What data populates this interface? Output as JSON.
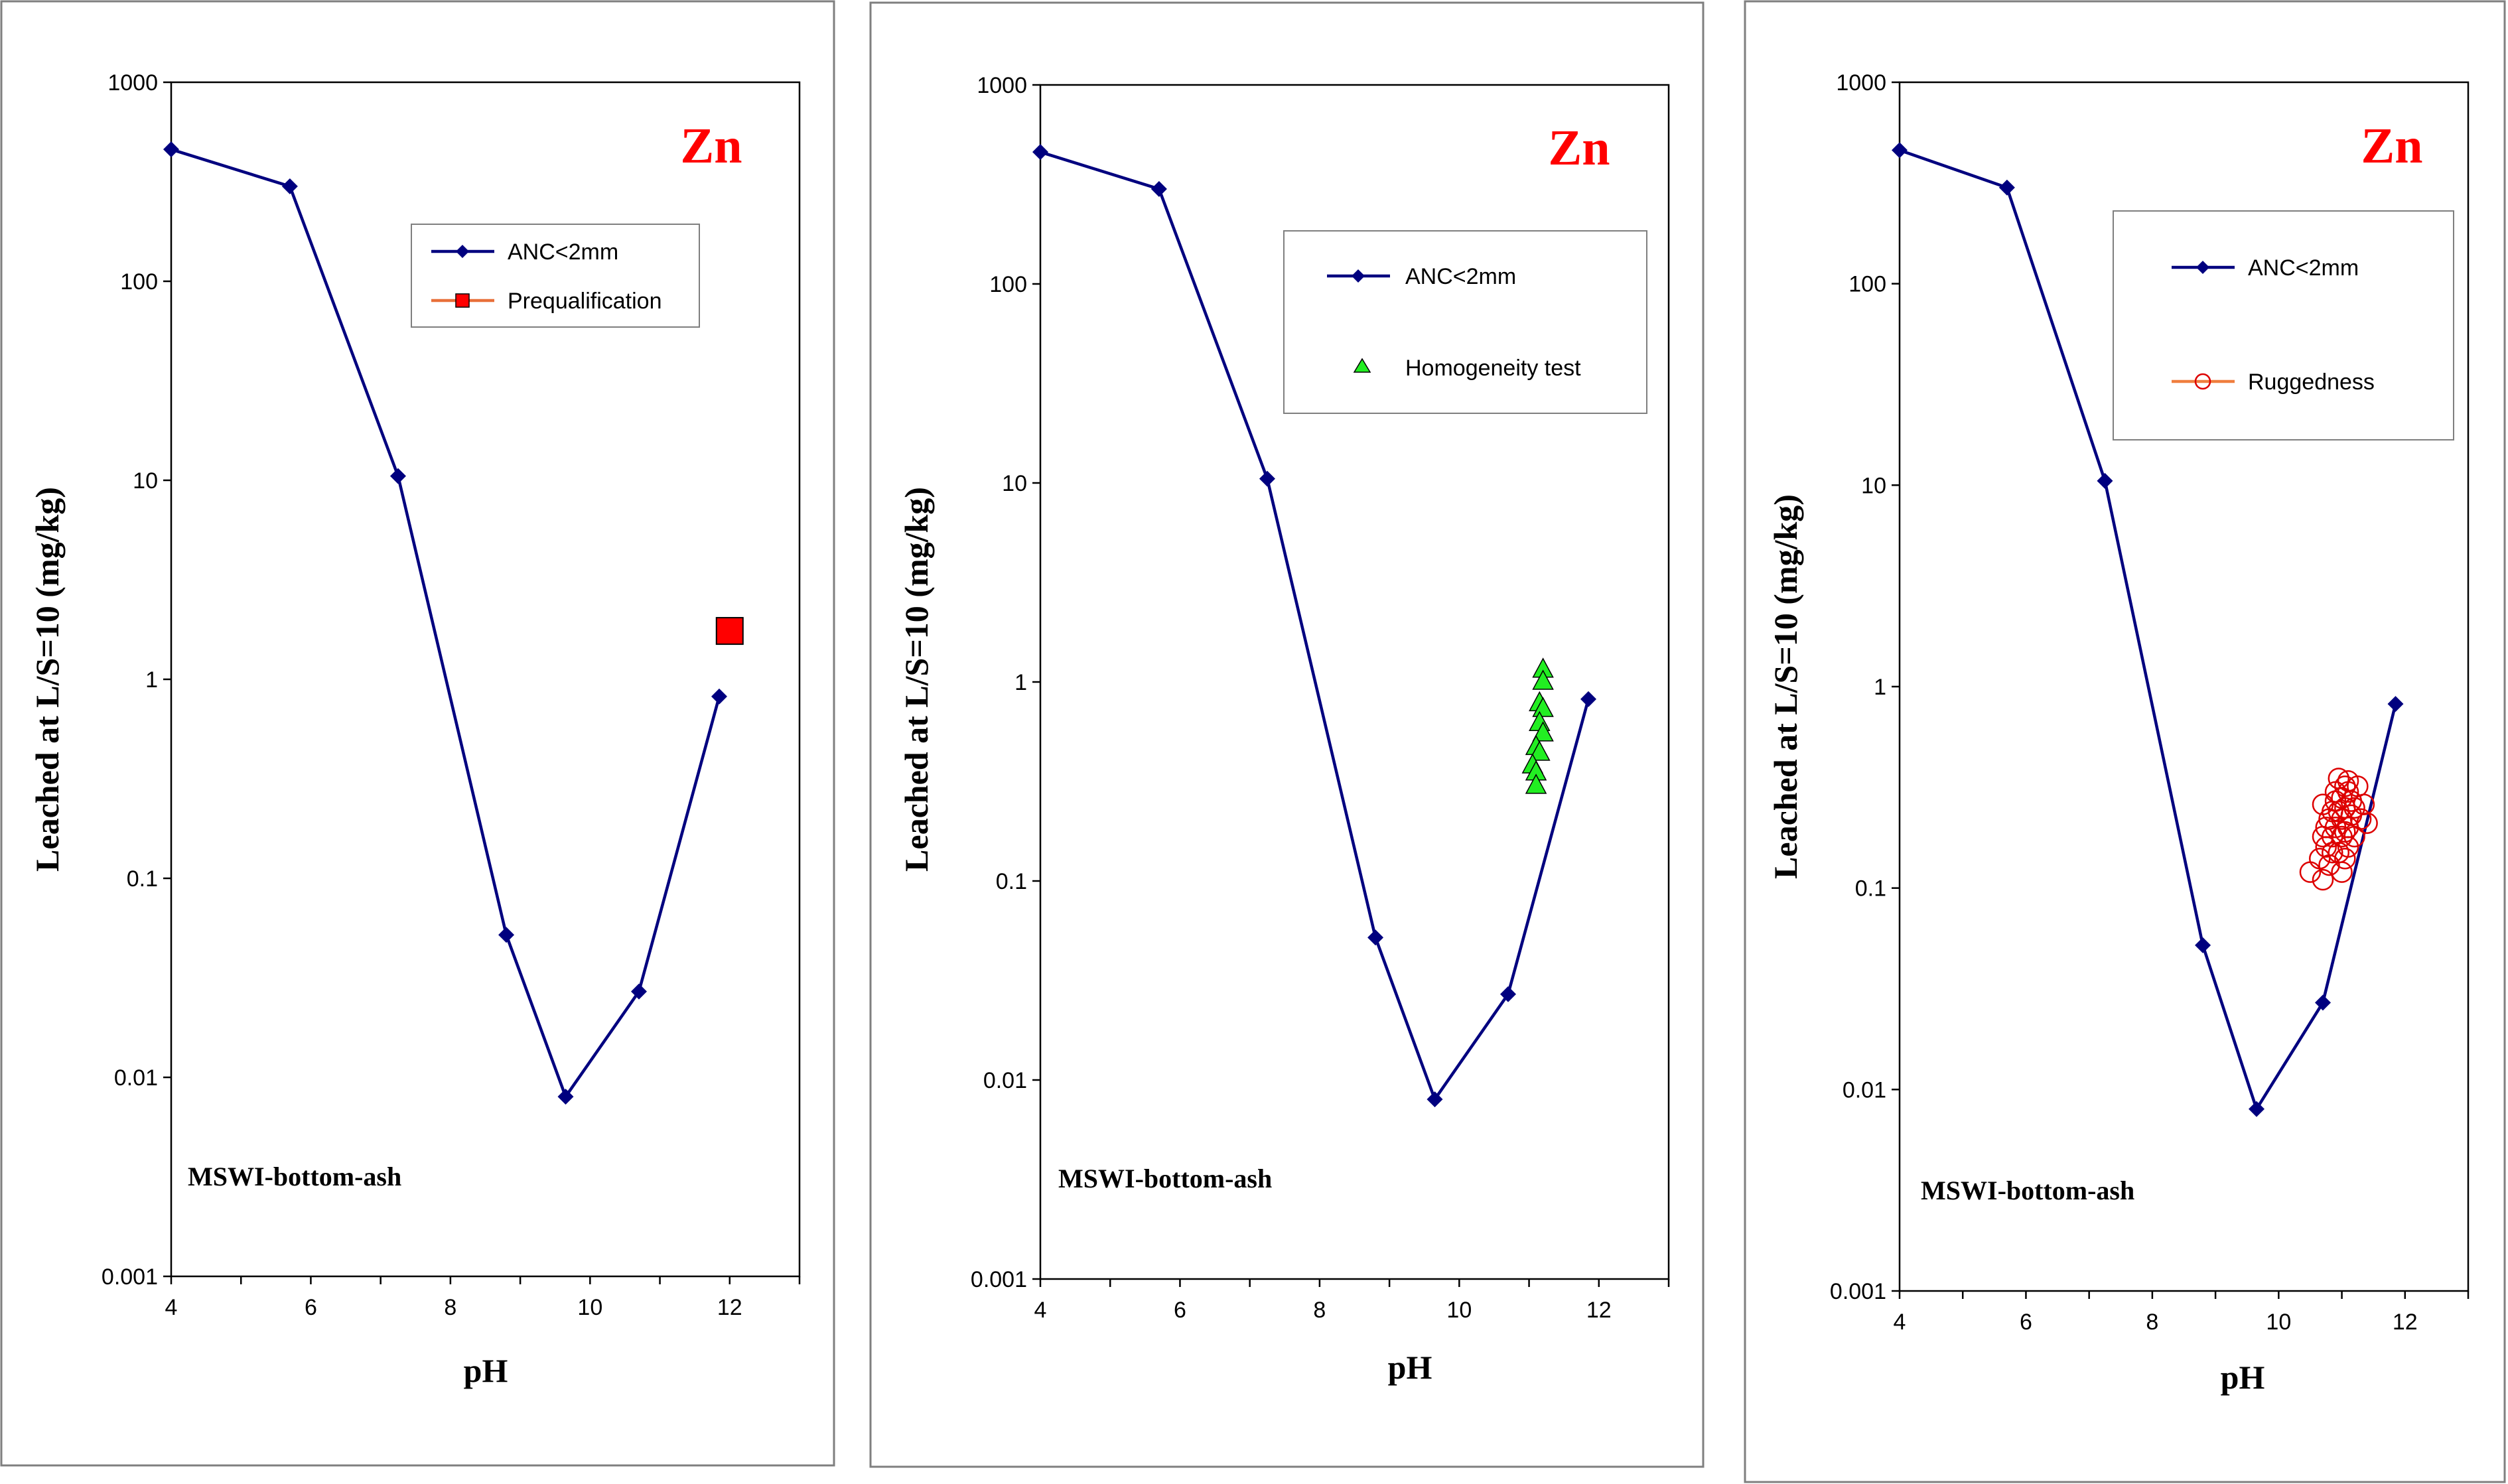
{
  "colors": {
    "anc_line": "#00007f",
    "prequal_fill": "#ff0000",
    "prequal_line": "#e8703a",
    "homogeneity_fill": "#22ee22",
    "ruggedness_stroke": "#dd0000",
    "ruggedness_line": "#f07e3e",
    "element_label": "#ff0000"
  },
  "chart_data": [
    {
      "type": "line",
      "element": "Zn",
      "note": "MSWI-bottom-ash",
      "xlabel": "pH",
      "ylabel": "Leached at L/S=10 (mg/kg)",
      "xlim": [
        4,
        13
      ],
      "ylim": [
        0.001,
        1000
      ],
      "yscale": "log",
      "xticks": [
        "4",
        "6",
        "8",
        "10",
        "12"
      ],
      "yticks": [
        "1000",
        "100",
        "10",
        "1",
        "0.1",
        "0.01",
        "0.001"
      ],
      "legend_position": "top-right",
      "series": [
        {
          "name": "ANC<2mm",
          "marker": "diamond",
          "x": [
            4.0,
            5.7,
            7.25,
            8.8,
            9.65,
            10.7,
            11.85
          ],
          "y": [
            460,
            300,
            10.5,
            0.052,
            0.008,
            0.027,
            0.82
          ]
        },
        {
          "name": "Prequalification",
          "marker": "square",
          "x": [
            12.0
          ],
          "y": [
            1.75
          ]
        }
      ]
    },
    {
      "type": "line",
      "element": "Zn",
      "note": "MSWI-bottom-ash",
      "xlabel": "pH",
      "ylabel": "Leached at L/S=10 (mg/kg)",
      "xlim": [
        4,
        13
      ],
      "ylim": [
        0.001,
        1000
      ],
      "yscale": "log",
      "xticks": [
        "4",
        "6",
        "8",
        "10",
        "12"
      ],
      "yticks": [
        "1000",
        "100",
        "10",
        "1",
        "0.1",
        "0.01",
        "0.001"
      ],
      "legend_position": "top-right",
      "series": [
        {
          "name": "ANC<2mm",
          "marker": "diamond",
          "x": [
            4.0,
            5.7,
            7.25,
            8.8,
            9.65,
            10.7,
            11.85
          ],
          "y": [
            460,
            300,
            10.5,
            0.052,
            0.008,
            0.027,
            0.82
          ]
        },
        {
          "name": "Homogeneity test",
          "marker": "triangle",
          "x": [
            11.2,
            11.2,
            11.15,
            11.2,
            11.15,
            11.2,
            11.1,
            11.15,
            11.05,
            11.1,
            11.1
          ],
          "y": [
            1.15,
            1.0,
            0.78,
            0.73,
            0.62,
            0.55,
            0.47,
            0.44,
            0.38,
            0.35,
            0.3
          ]
        }
      ]
    },
    {
      "type": "line",
      "element": "Zn",
      "note": "MSWI-bottom-ash",
      "xlabel": "pH",
      "ylabel": "Leached at L/S=10 (mg/kg)",
      "xlim": [
        4,
        13
      ],
      "ylim": [
        0.001,
        1000
      ],
      "yscale": "log",
      "xticks": [
        "4",
        "6",
        "8",
        "10",
        "12"
      ],
      "yticks": [
        "1000",
        "100",
        "10",
        "1",
        "0.1",
        "0.01",
        "0.001"
      ],
      "legend_position": "top-right",
      "series": [
        {
          "name": "ANC<2mm",
          "marker": "diamond",
          "x": [
            4.0,
            5.7,
            7.25,
            8.8,
            9.65,
            10.7,
            11.85
          ],
          "y": [
            460,
            300,
            10.5,
            0.052,
            0.008,
            0.027,
            0.82
          ]
        },
        {
          "name": "Ruggedness",
          "marker": "circle",
          "x": [
            10.5,
            10.65,
            10.7,
            10.7,
            10.75,
            10.75,
            10.8,
            10.8,
            10.85,
            10.85,
            10.9,
            10.9,
            10.95,
            10.95,
            11.0,
            11.0,
            11.0,
            11.05,
            11.05,
            11.05,
            11.1,
            11.1,
            11.1,
            11.15,
            11.15,
            11.2,
            11.2,
            11.25,
            11.3,
            11.35,
            11.4,
            11.0,
            10.9,
            10.7,
            10.95,
            11.05,
            11.1,
            10.85
          ],
          "y": [
            0.12,
            0.14,
            0.11,
            0.26,
            0.2,
            0.16,
            0.22,
            0.13,
            0.24,
            0.18,
            0.3,
            0.2,
            0.35,
            0.15,
            0.28,
            0.22,
            0.18,
            0.32,
            0.25,
            0.14,
            0.3,
            0.2,
            0.16,
            0.27,
            0.23,
            0.25,
            0.18,
            0.32,
            0.22,
            0.26,
            0.21,
            0.12,
            0.27,
            0.18,
            0.24,
            0.19,
            0.34,
            0.15
          ]
        }
      ]
    }
  ]
}
